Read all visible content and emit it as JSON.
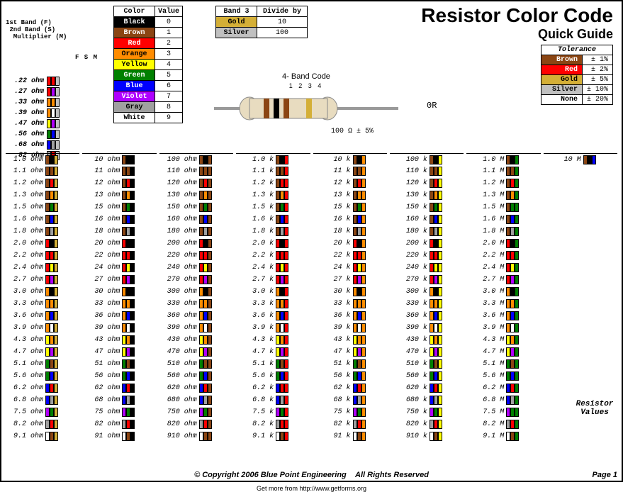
{
  "title": "Resistor Color Code",
  "subtitle": "Quick Guide",
  "band_header": "1st Band (F)\n 2nd Band (S)\n  Multiplier (M)",
  "fsm": "F S M",
  "color_map": {
    "black": "#000000",
    "brown": "#8b4513",
    "red": "#ff0000",
    "orange": "#ff8c00",
    "yellow": "#ffff00",
    "green": "#008000",
    "blue": "#0000ff",
    "violet": "#b000ff",
    "gray": "#a0a0a0",
    "white": "#ffffff",
    "gold": "#d4af37",
    "silver": "#c0c0c0"
  },
  "color_text": {
    "black": "#fff",
    "brown": "#fff",
    "red": "#fff",
    "orange": "#000",
    "yellow": "#000",
    "green": "#fff",
    "blue": "#fff",
    "violet": "#fff",
    "gray": "#000",
    "white": "#000",
    "gold": "#000",
    "silver": "#000"
  },
  "value_table": {
    "head": [
      "Color",
      "Value"
    ],
    "rows": [
      [
        "Black",
        "black",
        "0"
      ],
      [
        "Brown",
        "brown",
        "1"
      ],
      [
        "Red",
        "red",
        "2"
      ],
      [
        "Orange",
        "orange",
        "3"
      ],
      [
        "Yellow",
        "yellow",
        "4"
      ],
      [
        "Green",
        "green",
        "5"
      ],
      [
        "Blue",
        "blue",
        "6"
      ],
      [
        "Violet",
        "violet",
        "7"
      ],
      [
        "Gray",
        "gray",
        "8"
      ],
      [
        "White",
        "white",
        "9"
      ]
    ]
  },
  "band3_table": {
    "head": [
      "Band 3",
      "Divide by"
    ],
    "rows": [
      [
        "Gold",
        "gold",
        "10"
      ],
      [
        "Silver",
        "silver",
        "100"
      ]
    ]
  },
  "tolerance": {
    "title": "Tolerance",
    "rows": [
      [
        "Brown",
        "brown",
        "± 1%"
      ],
      [
        "Red",
        "red",
        "± 2%"
      ],
      [
        "Gold",
        "gold",
        "± 5%"
      ],
      [
        "Silver",
        "silver",
        "± 10%"
      ],
      [
        "None",
        "white",
        "± 20%"
      ]
    ]
  },
  "diagram": {
    "title": "4- Band Code",
    "nums": "1 2 3  4",
    "zero": "0R",
    "caption": "100 Ω ± 5%",
    "body": "#e8dcc0",
    "bands": [
      "#8b4513",
      "#000000",
      "#8b4513",
      "#d4af37"
    ]
  },
  "sub_ohm": [
    {
      "l": ".22 ohm",
      "b": [
        "red",
        "red",
        "silver"
      ]
    },
    {
      "l": ".27 ohm",
      "b": [
        "red",
        "violet",
        "silver"
      ]
    },
    {
      "l": ".33 ohm",
      "b": [
        "orange",
        "orange",
        "silver"
      ]
    },
    {
      "l": ".39 ohm",
      "b": [
        "orange",
        "white",
        "silver"
      ]
    },
    {
      "l": ".47 ohm",
      "b": [
        "yellow",
        "violet",
        "silver"
      ]
    },
    {
      "l": ".56 ohm",
      "b": [
        "green",
        "blue",
        "silver"
      ]
    },
    {
      "l": ".68 ohm",
      "b": [
        "blue",
        "gray",
        "silver"
      ]
    },
    {
      "l": ".82 ohm",
      "b": [
        "gray",
        "red",
        "silver"
      ]
    }
  ],
  "base_values": [
    {
      "v": "1.0",
      "b": [
        "brown",
        "black"
      ]
    },
    {
      "v": "1.1",
      "b": [
        "brown",
        "brown"
      ]
    },
    {
      "v": "1.2",
      "b": [
        "brown",
        "red"
      ]
    },
    {
      "v": "1.3",
      "b": [
        "brown",
        "orange"
      ]
    },
    {
      "v": "1.5",
      "b": [
        "brown",
        "green"
      ]
    },
    {
      "v": "1.6",
      "b": [
        "brown",
        "blue"
      ]
    },
    {
      "v": "1.8",
      "b": [
        "brown",
        "gray"
      ]
    },
    {
      "v": "2.0",
      "b": [
        "red",
        "black"
      ]
    },
    {
      "v": "2.2",
      "b": [
        "red",
        "red"
      ]
    },
    {
      "v": "2.4",
      "b": [
        "red",
        "yellow"
      ]
    },
    {
      "v": "2.7",
      "b": [
        "red",
        "violet"
      ]
    },
    {
      "v": "3.0",
      "b": [
        "orange",
        "black"
      ]
    },
    {
      "v": "3.3",
      "b": [
        "orange",
        "orange"
      ]
    },
    {
      "v": "3.6",
      "b": [
        "orange",
        "blue"
      ]
    },
    {
      "v": "3.9",
      "b": [
        "orange",
        "white"
      ]
    },
    {
      "v": "4.3",
      "b": [
        "yellow",
        "orange"
      ]
    },
    {
      "v": "4.7",
      "b": [
        "yellow",
        "violet"
      ]
    },
    {
      "v": "5.1",
      "b": [
        "green",
        "brown"
      ]
    },
    {
      "v": "5.6",
      "b": [
        "green",
        "blue"
      ]
    },
    {
      "v": "6.2",
      "b": [
        "blue",
        "red"
      ]
    },
    {
      "v": "6.8",
      "b": [
        "blue",
        "gray"
      ]
    },
    {
      "v": "7.5",
      "b": [
        "violet",
        "green"
      ]
    },
    {
      "v": "8.2",
      "b": [
        "gray",
        "red"
      ]
    },
    {
      "v": "9.1",
      "b": [
        "white",
        "brown"
      ]
    }
  ],
  "columns": [
    {
      "mult": "gold",
      "unit": " ohm",
      "int": false,
      "first_only": null
    },
    {
      "mult": "black",
      "unit": " ohm",
      "int": true,
      "first_only": null
    },
    {
      "mult": "brown",
      "unit": " ohm",
      "int": true,
      "first_only": null
    },
    {
      "mult": "red",
      "unit": " k",
      "int": false,
      "first_only": null
    },
    {
      "mult": "orange",
      "unit": " k",
      "int": true,
      "first_only": null
    },
    {
      "mult": "yellow",
      "unit": " k",
      "int": true,
      "first_only": null
    },
    {
      "mult": "green",
      "unit": " M",
      "int": false,
      "first_only": null
    },
    {
      "mult": "blue",
      "unit": " M",
      "int": true,
      "first_only": {
        "l": "10 M",
        "b": [
          "brown",
          "black",
          "blue"
        ]
      }
    }
  ],
  "decade_start": [
    1,
    10,
    100,
    1,
    10,
    100,
    1,
    10
  ],
  "res_values_label": "Resistor Values",
  "footer": {
    "copy": "© Copyright 2006 Blue Point Engineering",
    "rights": "All Rights Reserved",
    "page": "Page 1"
  },
  "getforms": "Get more from http://www.getforms.org"
}
